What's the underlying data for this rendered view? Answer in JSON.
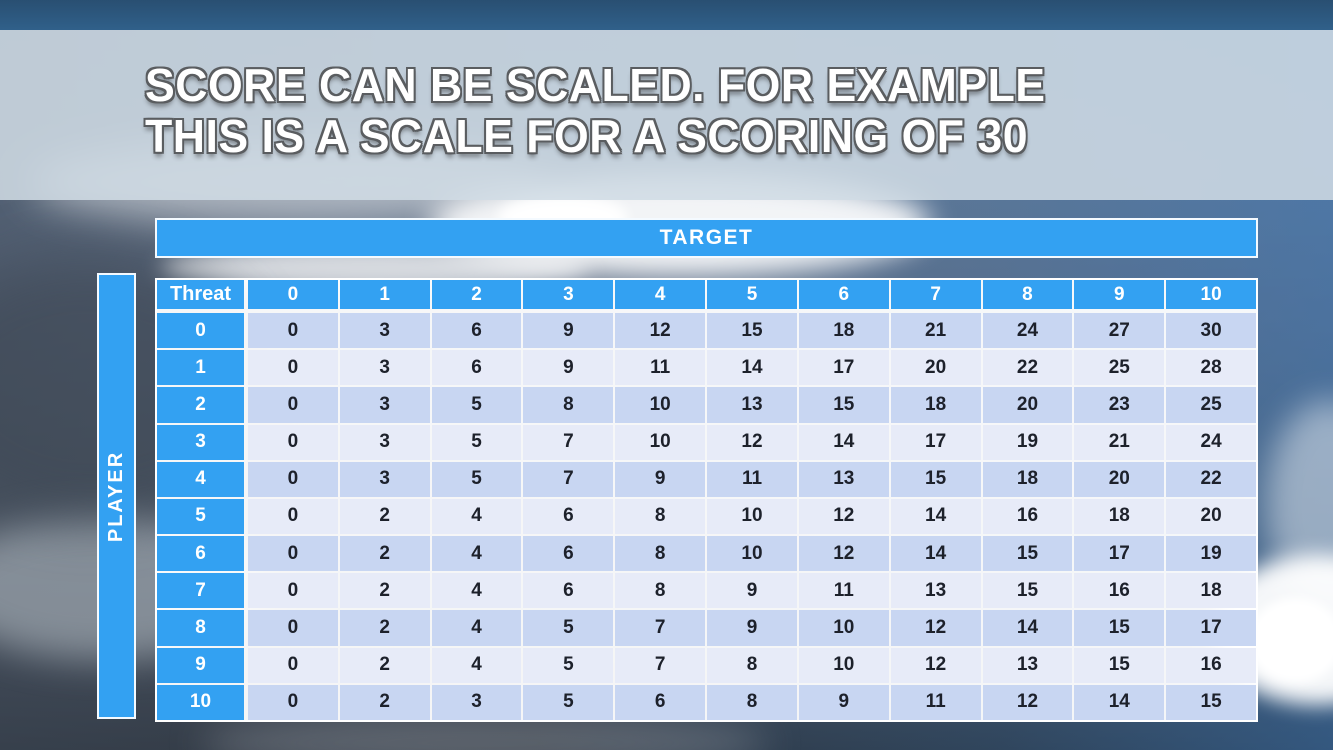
{
  "slide": {
    "title_line1": "SCORE CAN BE SCALED. FOR EXAMPLE",
    "title_line2": "THIS IS A SCALE FOR A SCORING OF 30"
  },
  "matrix": {
    "target_label": "TARGET",
    "player_label": "PLAYER",
    "corner_label": "Threat",
    "column_headers": [
      "0",
      "1",
      "2",
      "3",
      "4",
      "5",
      "6",
      "7",
      "8",
      "9",
      "10"
    ],
    "row_headers": [
      "0",
      "1",
      "2",
      "3",
      "4",
      "5",
      "6",
      "7",
      "8",
      "9",
      "10"
    ],
    "rows": [
      [
        0,
        3,
        6,
        9,
        12,
        15,
        18,
        21,
        24,
        27,
        30
      ],
      [
        0,
        3,
        6,
        9,
        11,
        14,
        17,
        20,
        22,
        25,
        28
      ],
      [
        0,
        3,
        5,
        8,
        10,
        13,
        15,
        18,
        20,
        23,
        25
      ],
      [
        0,
        3,
        5,
        7,
        10,
        12,
        14,
        17,
        19,
        21,
        24
      ],
      [
        0,
        3,
        5,
        7,
        9,
        11,
        13,
        15,
        18,
        20,
        22
      ],
      [
        0,
        2,
        4,
        6,
        8,
        10,
        12,
        14,
        16,
        18,
        20
      ],
      [
        0,
        2,
        4,
        6,
        8,
        10,
        12,
        14,
        15,
        17,
        19
      ],
      [
        0,
        2,
        4,
        6,
        8,
        9,
        11,
        13,
        15,
        16,
        18
      ],
      [
        0,
        2,
        4,
        5,
        7,
        9,
        10,
        12,
        14,
        15,
        17
      ],
      [
        0,
        2,
        4,
        5,
        7,
        8,
        10,
        12,
        13,
        15,
        16
      ],
      [
        0,
        2,
        3,
        5,
        6,
        8,
        9,
        11,
        12,
        14,
        15
      ]
    ]
  },
  "colors": {
    "header_blue": "#33A1F2",
    "band_dark": "#C8D6F2",
    "band_light": "#E7EBF8",
    "cell_text": "#1D212B",
    "top_strip": "#2D5A80"
  }
}
